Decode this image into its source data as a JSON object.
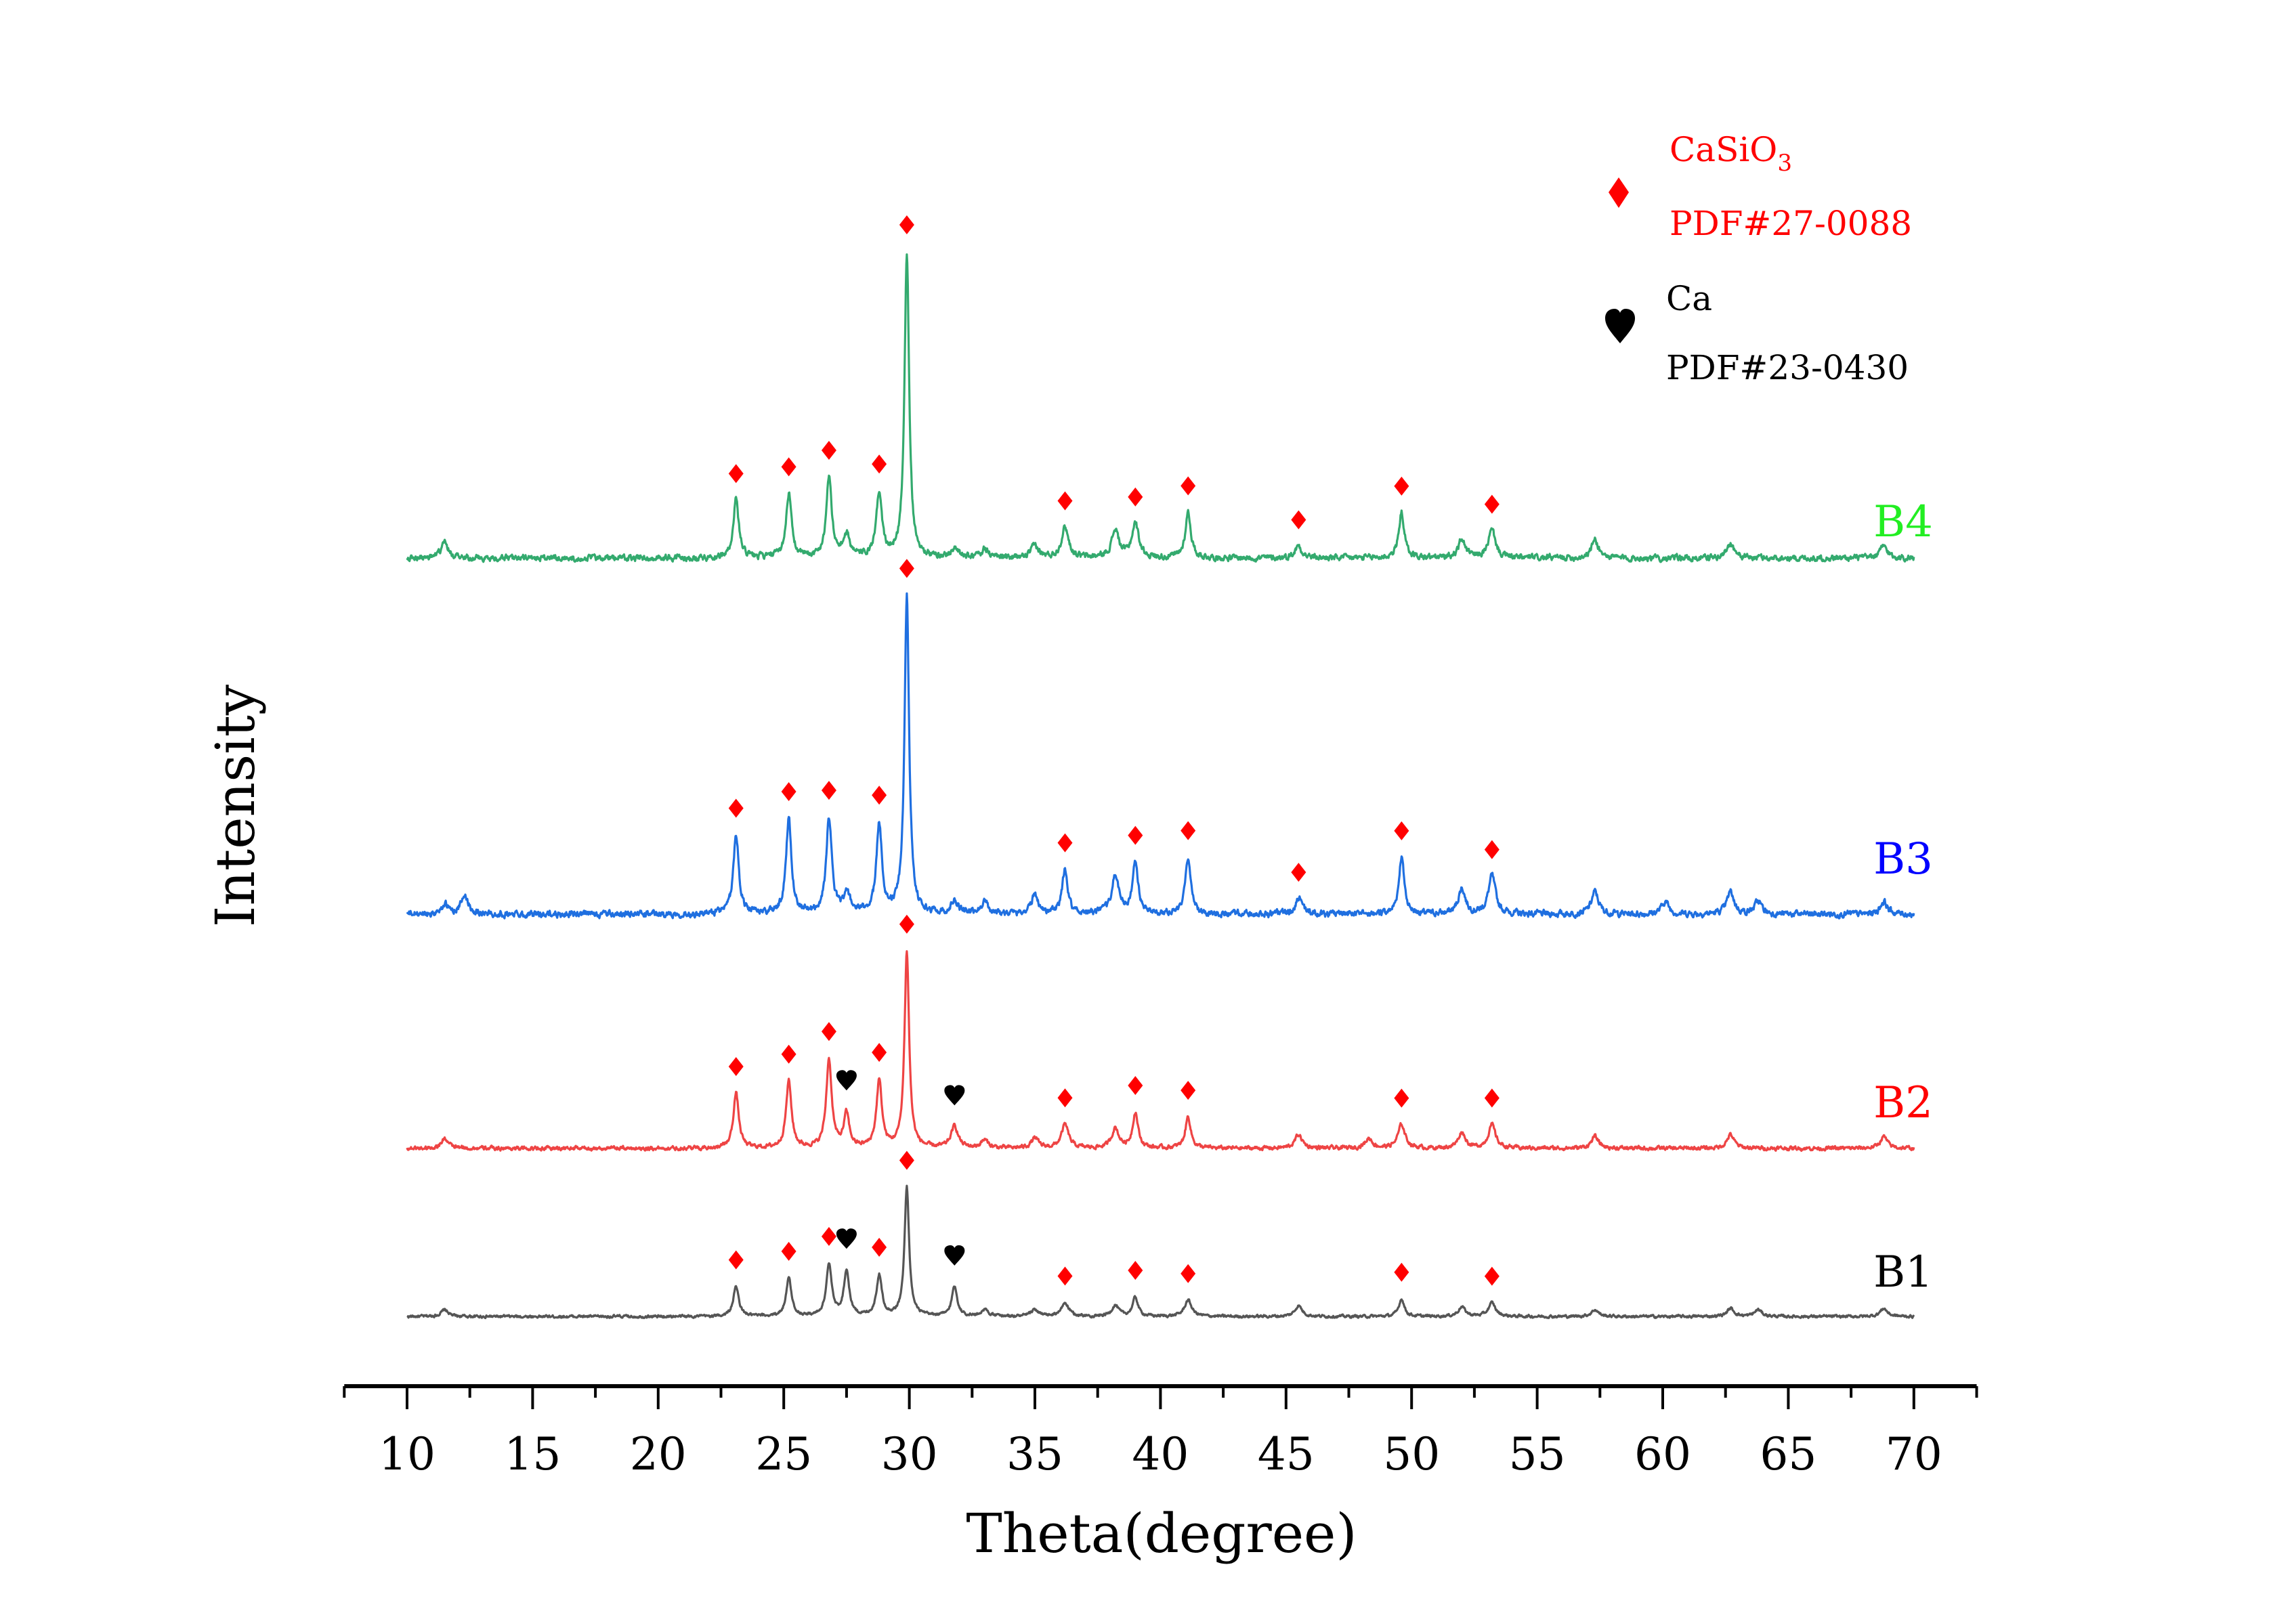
{
  "chart_data": {
    "type": "line",
    "title": "",
    "xlabel": "Theta(degree)",
    "ylabel": "Intensity",
    "xlim": [
      7.5,
      72.5
    ],
    "xticks": [
      10,
      15,
      20,
      25,
      30,
      35,
      40,
      45,
      50,
      55,
      60,
      65,
      70
    ],
    "x_range_data": [
      10,
      70
    ],
    "yticks_shown": false,
    "grid": false,
    "legend": {
      "placement": "top-right",
      "entries": [
        {
          "marker": "diamond",
          "color": "#ff0000",
          "name": "CaSiO",
          "subscript": "3",
          "ref": "PDF#27-0088"
        },
        {
          "marker": "heart",
          "color": "#000000",
          "name": "Ca",
          "subscript": "",
          "ref": "PDF#23-0430"
        }
      ]
    },
    "series": [
      {
        "name": "B1",
        "color": "#555555",
        "label_color": "#000000",
        "offset_rank": 0,
        "peaks": [
          [
            11.5,
            0.05
          ],
          [
            23.1,
            0.22
          ],
          [
            25.2,
            0.28
          ],
          [
            26.8,
            0.38
          ],
          [
            27.5,
            0.33
          ],
          [
            28.8,
            0.3
          ],
          [
            29.9,
            0.95
          ],
          [
            31.8,
            0.22
          ],
          [
            33.0,
            0.05
          ],
          [
            35.0,
            0.05
          ],
          [
            36.2,
            0.1
          ],
          [
            38.2,
            0.08
          ],
          [
            39.0,
            0.14
          ],
          [
            41.1,
            0.12
          ],
          [
            45.5,
            0.08
          ],
          [
            49.6,
            0.13
          ],
          [
            52.0,
            0.07
          ],
          [
            53.2,
            0.1
          ],
          [
            57.3,
            0.05
          ],
          [
            62.7,
            0.06
          ],
          [
            63.8,
            0.05
          ],
          [
            68.8,
            0.06
          ]
        ],
        "diamond_peaks": [
          23.1,
          25.2,
          26.8,
          28.8,
          29.9,
          36.2,
          39.0,
          41.1,
          49.6,
          53.2
        ],
        "heart_peaks": [
          27.5,
          31.8
        ]
      },
      {
        "name": "B2",
        "color": "#ee4444",
        "label_color": "#ff0000",
        "offset_rank": 1,
        "peaks": [
          [
            11.5,
            0.05
          ],
          [
            23.1,
            0.28
          ],
          [
            25.2,
            0.34
          ],
          [
            26.8,
            0.45
          ],
          [
            27.5,
            0.17
          ],
          [
            28.8,
            0.34
          ],
          [
            29.9,
            1.0
          ],
          [
            31.8,
            0.11
          ],
          [
            33.0,
            0.04
          ],
          [
            35.0,
            0.05
          ],
          [
            36.2,
            0.12
          ],
          [
            38.2,
            0.1
          ],
          [
            39.0,
            0.18
          ],
          [
            41.1,
            0.16
          ],
          [
            45.5,
            0.07
          ],
          [
            48.3,
            0.05
          ],
          [
            49.6,
            0.12
          ],
          [
            52.0,
            0.08
          ],
          [
            53.2,
            0.12
          ],
          [
            57.3,
            0.06
          ],
          [
            62.7,
            0.07
          ],
          [
            68.8,
            0.06
          ]
        ],
        "diamond_peaks": [
          23.1,
          25.2,
          26.8,
          28.8,
          29.9,
          36.2,
          39.0,
          41.1,
          49.6,
          53.2
        ],
        "heart_peaks": [
          27.5,
          31.8
        ]
      },
      {
        "name": "B3",
        "color": "#1f6fe0",
        "label_color": "#0000ff",
        "offset_rank": 2,
        "peaks": [
          [
            11.5,
            0.03
          ],
          [
            12.3,
            0.06
          ],
          [
            23.1,
            0.25
          ],
          [
            25.2,
            0.3
          ],
          [
            26.8,
            0.3
          ],
          [
            27.5,
            0.06
          ],
          [
            28.8,
            0.28
          ],
          [
            29.9,
            1.0
          ],
          [
            31.8,
            0.04
          ],
          [
            33.0,
            0.04
          ],
          [
            35.0,
            0.06
          ],
          [
            36.2,
            0.14
          ],
          [
            38.2,
            0.12
          ],
          [
            39.0,
            0.16
          ],
          [
            41.1,
            0.18
          ],
          [
            45.5,
            0.05
          ],
          [
            49.6,
            0.18
          ],
          [
            52.0,
            0.08
          ],
          [
            53.2,
            0.12
          ],
          [
            57.3,
            0.07
          ],
          [
            60.1,
            0.04
          ],
          [
            62.7,
            0.07
          ],
          [
            63.8,
            0.04
          ],
          [
            68.8,
            0.04
          ]
        ],
        "diamond_peaks": [
          23.1,
          25.2,
          26.8,
          28.8,
          29.9,
          36.2,
          39.0,
          41.1,
          45.5,
          49.6,
          53.2
        ],
        "heart_peaks": []
      },
      {
        "name": "B4",
        "color": "#33aa6e",
        "label_color": "#22ee22",
        "offset_rank": 3,
        "peaks": [
          [
            11.5,
            0.05
          ],
          [
            23.1,
            0.19
          ],
          [
            25.2,
            0.21
          ],
          [
            26.8,
            0.26
          ],
          [
            27.5,
            0.07
          ],
          [
            28.8,
            0.21
          ],
          [
            29.9,
            1.0
          ],
          [
            31.8,
            0.03
          ],
          [
            33.0,
            0.03
          ],
          [
            35.0,
            0.04
          ],
          [
            36.2,
            0.1
          ],
          [
            38.2,
            0.09
          ],
          [
            39.0,
            0.11
          ],
          [
            41.1,
            0.15
          ],
          [
            45.5,
            0.04
          ],
          [
            49.6,
            0.15
          ],
          [
            52.0,
            0.06
          ],
          [
            53.2,
            0.09
          ],
          [
            57.3,
            0.06
          ],
          [
            62.7,
            0.05
          ],
          [
            68.8,
            0.04
          ]
        ],
        "diamond_peaks": [
          23.1,
          25.2,
          26.8,
          28.8,
          29.9,
          36.2,
          39.0,
          41.1,
          45.5,
          49.6,
          53.2
        ],
        "heart_peaks": []
      }
    ]
  }
}
